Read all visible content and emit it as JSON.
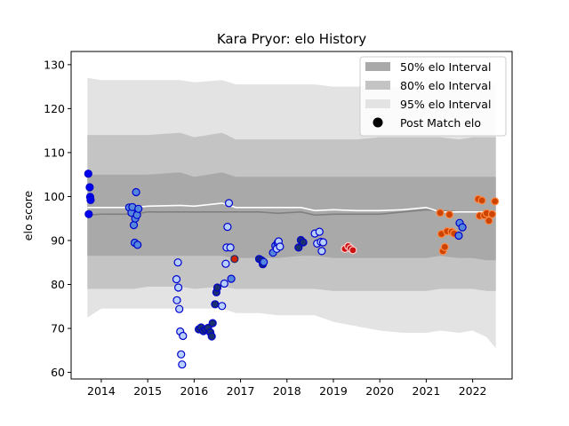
{
  "chart_data": {
    "type": "scatter",
    "title": "Kara Pryor: elo History",
    "xlabel": "",
    "ylabel": "elo score",
    "xlim": [
      2013.35,
      2022.85
    ],
    "ylim": [
      58.5,
      133
    ],
    "xticks": [
      2014,
      2015,
      2016,
      2017,
      2018,
      2019,
      2020,
      2021,
      2022
    ],
    "yticks": [
      60,
      70,
      80,
      90,
      100,
      110,
      120,
      130
    ],
    "legend": {
      "placement": "top-right",
      "entries": [
        "50% elo Interval",
        "80% elo Interval",
        "95% elo Interval",
        "Post Match elo"
      ]
    },
    "colors": {
      "band50": "#a9a9a9",
      "band80": "#c4c4c4",
      "band95": "#e3e3e3",
      "mean_line": "#808080",
      "median_line": "#ffffff",
      "blue_edge": "#0000cc",
      "red_edge": "#e03020"
    },
    "bands": {
      "x": [
        2013.7,
        2014.0,
        2014.7,
        2015.0,
        2015.7,
        2016.0,
        2016.6,
        2016.9,
        2017.4,
        2017.8,
        2018.3,
        2018.6,
        2019.0,
        2019.5,
        2020.0,
        2020.5,
        2021.0,
        2021.3,
        2021.7,
        2022.0,
        2022.3,
        2022.5
      ],
      "p95_hi": [
        127,
        126.5,
        126.5,
        126.5,
        126.5,
        126,
        126.5,
        125.5,
        125.5,
        125.5,
        125.5,
        125.5,
        125,
        125,
        125,
        125,
        125,
        125.5,
        125,
        125.5,
        125.5,
        125.5
      ],
      "p80_hi": [
        114,
        114,
        114,
        114,
        114.5,
        113.5,
        114.5,
        113,
        113,
        113,
        113,
        113,
        113,
        113,
        113.5,
        113.5,
        113.5,
        113.5,
        113,
        113.5,
        113.5,
        113.5
      ],
      "p50_hi": [
        105,
        105,
        105,
        105,
        105.5,
        104.5,
        105.5,
        104.5,
        104.5,
        104.5,
        104.5,
        104.5,
        104.5,
        104.5,
        104.5,
        104.5,
        104.5,
        104.5,
        104.5,
        104.5,
        104.5,
        104.5
      ],
      "p50_lo": [
        86.5,
        86.5,
        86.5,
        86.5,
        86.5,
        86.5,
        86.5,
        86,
        86,
        86,
        86.5,
        86.5,
        86,
        86,
        86,
        86,
        86,
        86.5,
        86,
        86,
        85.5,
        85.5
      ],
      "p80_lo": [
        79,
        79,
        79,
        79.5,
        79.5,
        79,
        79.5,
        79,
        79,
        79,
        79,
        79,
        78.5,
        78.5,
        78.5,
        78.5,
        78.5,
        79,
        79,
        79,
        78.5,
        78.5
      ],
      "p95_lo": [
        72.5,
        74.5,
        74.5,
        74.5,
        74.5,
        74.5,
        74.5,
        73.5,
        73.5,
        73,
        73,
        73,
        71.5,
        70.5,
        69.5,
        69,
        69,
        69.5,
        69,
        69.5,
        68,
        65.5
      ],
      "mean": [
        95.8,
        96,
        96,
        96.5,
        96.5,
        96.5,
        96.5,
        96.5,
        96.5,
        96.2,
        96.5,
        95.8,
        96,
        96,
        96,
        96.5,
        97,
        96.8,
        96.5,
        96.5,
        96.5,
        96.5
      ],
      "median": [
        97.5,
        97.5,
        97.5,
        97.8,
        98,
        97.8,
        98.5,
        97.5,
        97.5,
        97.5,
        97.5,
        96.8,
        97,
        96.8,
        96.8,
        97,
        97.5,
        96.5,
        96.5,
        96.5,
        96.5,
        96.5
      ]
    },
    "series": [
      {
        "fill": "#0000ee",
        "edge": "#0000cc",
        "x": [
          2013.72,
          2013.73,
          2013.75,
          2013.76,
          2013.77
        ],
        "y": [
          105.2,
          96,
          102.1,
          99.9,
          99.2
        ]
      },
      {
        "fill": "#5588dd",
        "edge": "#0000cc",
        "x": [
          2014.6,
          2014.65,
          2014.67,
          2014.7,
          2014.72,
          2014.73,
          2014.75,
          2014.77,
          2014.78,
          2014.8
        ],
        "y": [
          97.5,
          96.3,
          97.6,
          93.5,
          89.5,
          95,
          101,
          95.8,
          89,
          97.2
        ]
      },
      {
        "fill": "#b8d0ff",
        "edge": "#0000cc",
        "x": [
          2015.62,
          2015.63,
          2015.65,
          2015.66,
          2015.68,
          2015.7,
          2015.72,
          2015.74,
          2015.76
        ],
        "y": [
          81.2,
          76.4,
          85,
          79.3,
          74.4,
          69.3,
          64.1,
          61.8,
          68.3
        ]
      },
      {
        "fill": "#1a2f70",
        "edge": "#0000cc",
        "x": [
          2016.1,
          2016.15,
          2016.2,
          2016.25,
          2016.3,
          2016.35,
          2016.38,
          2016.4,
          2016.45,
          2016.48,
          2016.5
        ],
        "y": [
          69.8,
          70.2,
          69.4,
          69.8,
          70.1,
          69.1,
          68.2,
          71.2,
          75.5,
          78.2,
          79.3
        ]
      },
      {
        "fill": "#b8d0ff",
        "edge": "#0000cc",
        "x": [
          2016.6,
          2016.65,
          2016.68,
          2016.7,
          2016.72,
          2016.75,
          2016.78
        ],
        "y": [
          75.1,
          80.2,
          84.7,
          88.4,
          93.1,
          98.5,
          88.4
        ]
      },
      {
        "fill": "#5588dd",
        "edge": "#0000cc",
        "x": [
          2016.8
        ],
        "y": [
          81.3
        ]
      },
      {
        "fill": "#cc2200",
        "edge": "#1a2f70",
        "x": [
          2016.87
        ],
        "y": [
          85.8
        ]
      },
      {
        "fill": "#1a2f70",
        "edge": "#0000cc",
        "x": [
          2017.4,
          2017.45,
          2017.48,
          2018.25,
          2018.3,
          2018.35
        ],
        "y": [
          85.8,
          85.5,
          84.6,
          88.4,
          90.1,
          89.6
        ]
      },
      {
        "fill": "#5588dd",
        "edge": "#0000cc",
        "x": [
          2017.5,
          2017.7,
          2017.75,
          2017.8
        ],
        "y": [
          85.1,
          87.2,
          88.8,
          89.5
        ]
      },
      {
        "fill": "#b8d0ff",
        "edge": "#0000cc",
        "x": [
          2017.78,
          2017.82,
          2017.85,
          2018.6,
          2018.65,
          2018.7,
          2018.73,
          2018.75,
          2018.78
        ],
        "y": [
          88.1,
          89.8,
          88.6,
          91.6,
          89.3,
          92,
          89.7,
          87.6,
          89.6
        ]
      },
      {
        "fill": "#cc1111",
        "edge": "#ffcccc",
        "x": [
          2019.25,
          2019.32,
          2019.37,
          2019.42
        ],
        "y": [
          88.1,
          88.7,
          88.2,
          87.8
        ]
      },
      {
        "fill": "#cc4400",
        "edge": "#ff8844",
        "x": [
          2021.3,
          2021.33,
          2021.36,
          2021.4,
          2021.45,
          2021.5,
          2021.55,
          2021.6
        ],
        "y": [
          96.3,
          91.5,
          87.6,
          88.5,
          92.1,
          95.9,
          92,
          91.6
        ]
      },
      {
        "fill": "#5588dd",
        "edge": "#0000cc",
        "x": [
          2021.7,
          2021.72,
          2021.78
        ],
        "y": [
          91.1,
          94,
          93
        ]
      },
      {
        "fill": "#cc4400",
        "edge": "#ff8844",
        "x": [
          2022.12,
          2022.15,
          2022.2,
          2022.25,
          2022.3,
          2022.35,
          2022.42,
          2022.48
        ],
        "y": [
          99.4,
          95.6,
          99.1,
          95.7,
          96.2,
          94.5,
          96,
          98.9
        ]
      }
    ]
  }
}
